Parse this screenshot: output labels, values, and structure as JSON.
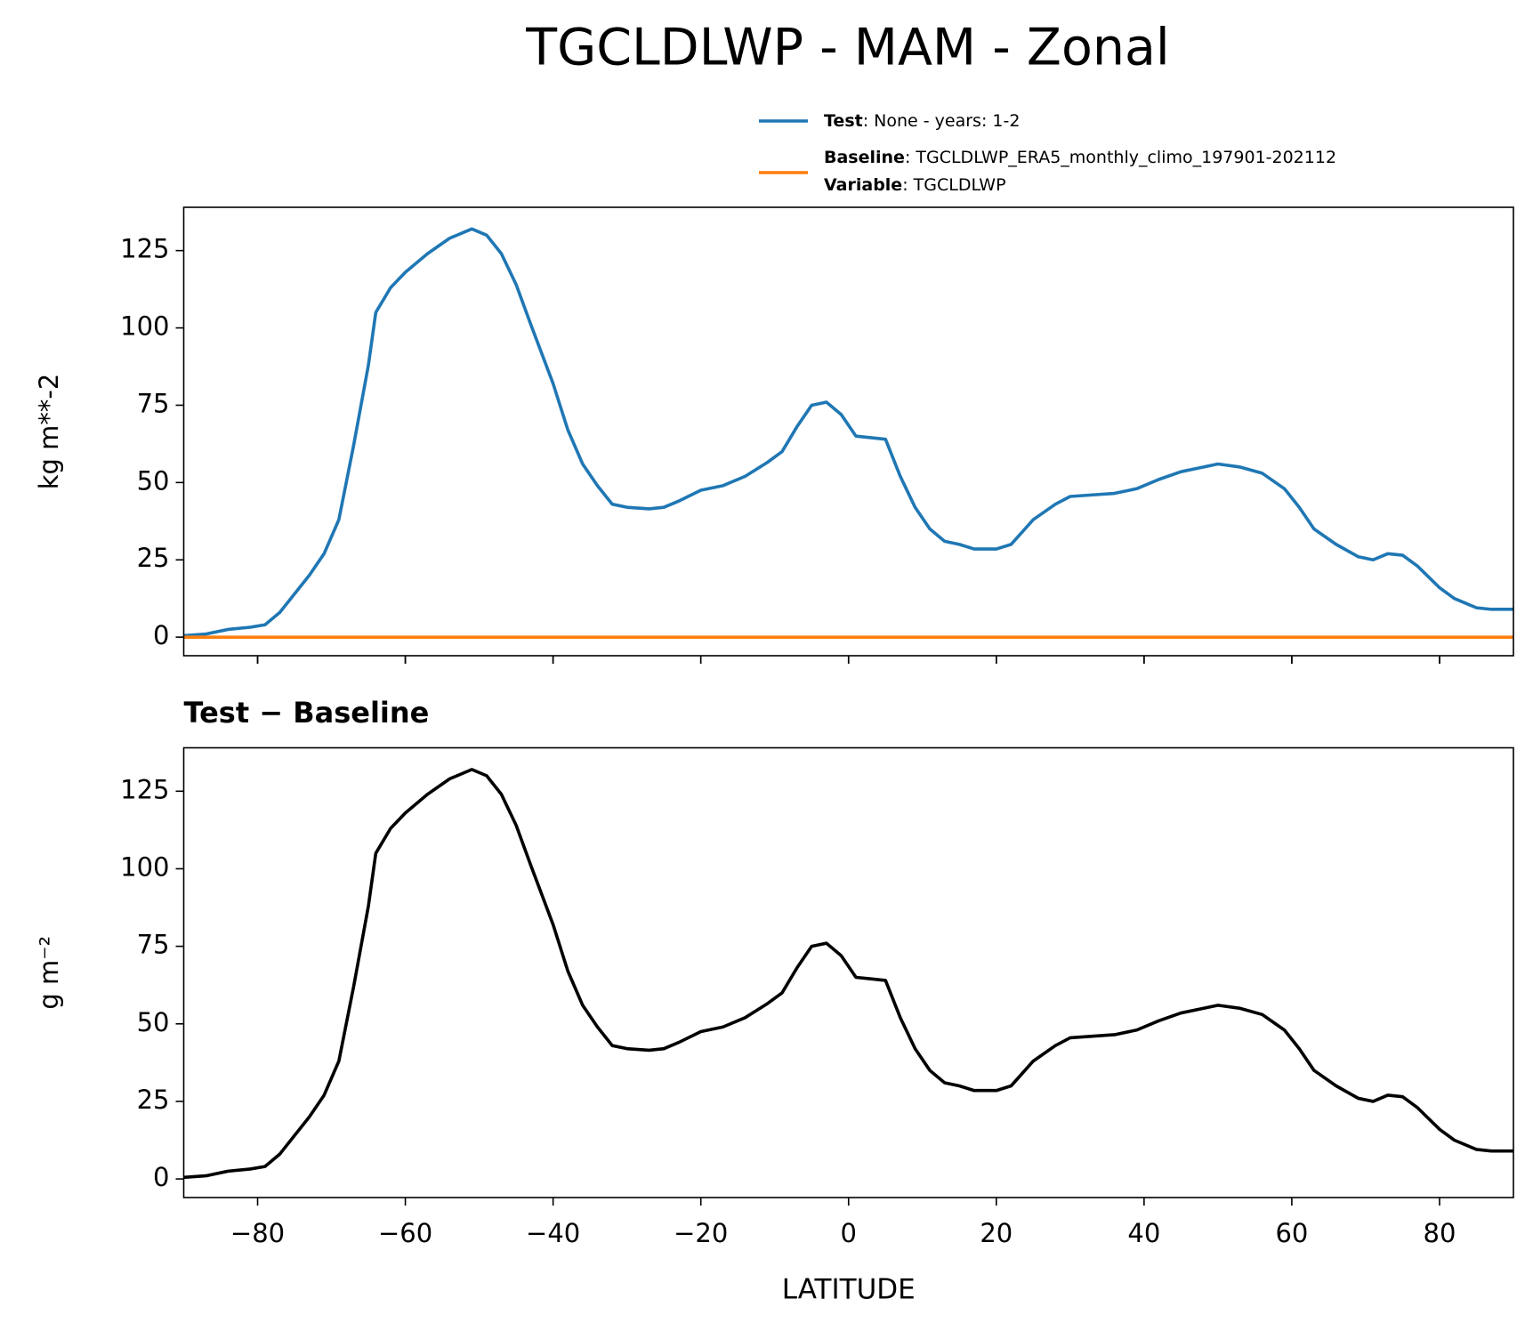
{
  "chart_data": [
    {
      "type": "line",
      "title": "TGCLDLWP - MAM - Zonal",
      "ylabel": "kg m**-2",
      "x": [
        -90,
        -87,
        -84,
        -81,
        -79,
        -77,
        -75,
        -73,
        -71,
        -69,
        -67,
        -65,
        -64,
        -62,
        -60,
        -57,
        -54,
        -51,
        -49,
        -47,
        -45,
        -43,
        -40,
        -38,
        -36,
        -34,
        -32,
        -30,
        -27,
        -25,
        -23,
        -20,
        -17,
        -14,
        -11,
        -9,
        -7,
        -5,
        -3,
        -1,
        1,
        3,
        5,
        7,
        9,
        11,
        13,
        15,
        17,
        20,
        22,
        25,
        28,
        30,
        33,
        36,
        39,
        42,
        45,
        48,
        50,
        53,
        56,
        59,
        61,
        63,
        66,
        69,
        71,
        73,
        75,
        77,
        80,
        82,
        85,
        87,
        90
      ],
      "series": [
        {
          "name": "Test",
          "legend_text": ": None - years: 1-2",
          "color": "#1f77b4",
          "values": [
            0.5,
            1,
            2.5,
            3.2,
            4,
            8,
            14,
            20,
            27,
            38,
            62,
            88,
            105,
            113,
            118,
            124,
            129,
            132,
            130,
            124,
            114,
            101,
            82,
            67,
            56,
            49,
            43,
            42,
            41.5,
            42,
            44,
            47.5,
            49,
            52,
            56.5,
            60,
            68,
            75,
            76,
            72,
            65,
            64.5,
            64,
            52,
            42,
            35,
            31,
            30,
            28.5,
            28.5,
            30,
            38,
            43,
            45.5,
            46,
            46.5,
            48,
            51,
            53.5,
            55,
            56,
            55,
            53,
            48,
            42,
            35,
            30,
            26,
            25,
            27,
            26.5,
            23,
            16,
            12.5,
            9.5,
            9,
            9
          ]
        },
        {
          "name": "Baseline",
          "legend_text": ": TGCLDLWP_ERA5_monthly_climo_197901-202112",
          "legend_extra": [
            {
              "key": "Variable",
              "text": ": TGCLDLWP"
            }
          ],
          "color": "#ff7f0e",
          "values": [
            0,
            0,
            0,
            0,
            0,
            0,
            0,
            0,
            0,
            0,
            0,
            0,
            0,
            0,
            0,
            0,
            0,
            0,
            0,
            0,
            0,
            0,
            0,
            0,
            0,
            0,
            0,
            0,
            0,
            0,
            0,
            0,
            0,
            0,
            0,
            0,
            0,
            0,
            0,
            0,
            0,
            0,
            0,
            0,
            0,
            0,
            0,
            0,
            0,
            0,
            0,
            0,
            0,
            0,
            0,
            0,
            0,
            0,
            0,
            0,
            0,
            0,
            0,
            0,
            0,
            0,
            0,
            0,
            0,
            0,
            0,
            0,
            0,
            0,
            0,
            0,
            0
          ]
        }
      ],
      "xlim": [
        -90,
        90
      ],
      "xticks": [
        -80,
        -60,
        -40,
        -20,
        0,
        20,
        40,
        60,
        80
      ],
      "ylim": [
        -6,
        139
      ],
      "yticks": [
        0,
        25,
        50,
        75,
        100,
        125
      ]
    },
    {
      "type": "line",
      "title": "Test − Baseline",
      "ylabel": "g m⁻²",
      "xlabel": "LATITUDE",
      "x": [
        -90,
        -87,
        -84,
        -81,
        -79,
        -77,
        -75,
        -73,
        -71,
        -69,
        -67,
        -65,
        -64,
        -62,
        -60,
        -57,
        -54,
        -51,
        -49,
        -47,
        -45,
        -43,
        -40,
        -38,
        -36,
        -34,
        -32,
        -30,
        -27,
        -25,
        -23,
        -20,
        -17,
        -14,
        -11,
        -9,
        -7,
        -5,
        -3,
        -1,
        1,
        3,
        5,
        7,
        9,
        11,
        13,
        15,
        17,
        20,
        22,
        25,
        28,
        30,
        33,
        36,
        39,
        42,
        45,
        48,
        50,
        53,
        56,
        59,
        61,
        63,
        66,
        69,
        71,
        73,
        75,
        77,
        80,
        82,
        85,
        87,
        90
      ],
      "series": [
        {
          "color": "#000000",
          "values": [
            0.5,
            1,
            2.5,
            3.2,
            4,
            8,
            14,
            20,
            27,
            38,
            62,
            88,
            105,
            113,
            118,
            124,
            129,
            132,
            130,
            124,
            114,
            101,
            82,
            67,
            56,
            49,
            43,
            42,
            41.5,
            42,
            44,
            47.5,
            49,
            52,
            56.5,
            60,
            68,
            75,
            76,
            72,
            65,
            64.5,
            64,
            52,
            42,
            35,
            31,
            30,
            28.5,
            28.5,
            30,
            38,
            43,
            45.5,
            46,
            46.5,
            48,
            51,
            53.5,
            55,
            56,
            55,
            53,
            48,
            42,
            35,
            30,
            26,
            25,
            27,
            26.5,
            23,
            16,
            12.5,
            9.5,
            9,
            9
          ]
        }
      ],
      "xlim": [
        -90,
        90
      ],
      "xticks": [
        {
          "value": -80,
          "label": "−80"
        },
        {
          "value": -60,
          "label": "−60"
        },
        {
          "value": -40,
          "label": "−40"
        },
        {
          "value": -20,
          "label": "−20"
        },
        0,
        20,
        40,
        60,
        80
      ],
      "ylim": [
        -6,
        139
      ],
      "yticks": [
        0,
        25,
        50,
        75,
        100,
        125
      ]
    }
  ]
}
